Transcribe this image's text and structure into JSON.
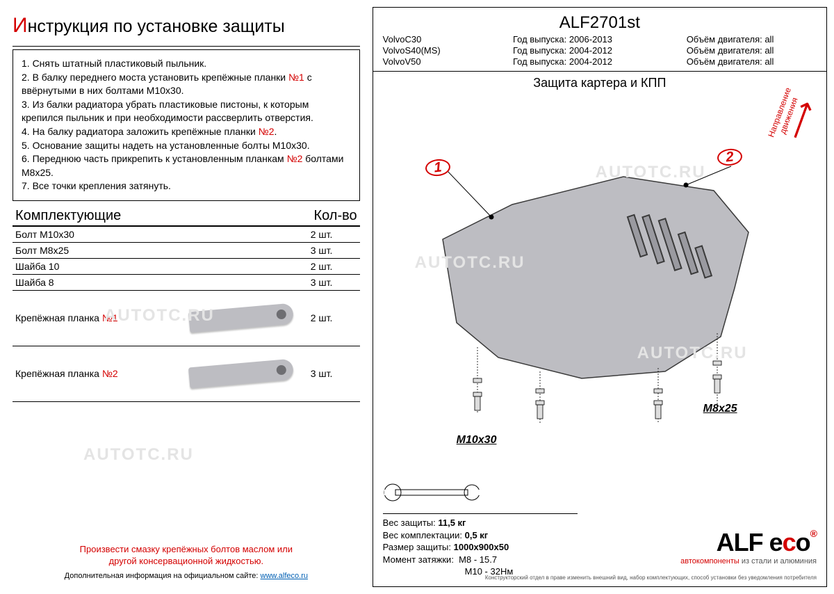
{
  "colors": {
    "accent_red": "#d40000",
    "plate_fill": "#bdbdc2",
    "plate_stroke": "#3a3a3a",
    "watermark": "#e4e4e4",
    "text": "#000000",
    "background": "#ffffff",
    "link": "#005fb3"
  },
  "left": {
    "title_cap": "И",
    "title_rest": "нструкция по установке защиты",
    "instructions": [
      {
        "n": "1.",
        "text": "Снять штатный пластиковый пыльник."
      },
      {
        "n": "2.",
        "text_pre": "В балку переднего моста установить крепёжные планки ",
        "ref": "№1",
        "text_post": " с ввёрнутыми в них болтами М10х30."
      },
      {
        "n": "3.",
        "text": "Из балки радиатора убрать пластиковые пистоны, к которым крепился пыльник и при необходимости рассверлить отверстия."
      },
      {
        "n": "4.",
        "text_pre": "На балку радиатора заложить крепёжные планки ",
        "ref": "№2",
        "text_post": "."
      },
      {
        "n": "5.",
        "text": "Основание защиты надеть на установленные болты М10х30."
      },
      {
        "n": "6.",
        "text_pre": "Переднюю часть прикрепить к установленным планкам ",
        "ref": "№2",
        "text_post": " болтами М8х25."
      },
      {
        "n": "7.",
        "text": "Все точки крепления затянуть."
      }
    ],
    "parts_header_left": "Комплектующие",
    "parts_header_right": "Кол-во",
    "parts": [
      {
        "name": "Болт М10х30",
        "qty": "2 шт."
      },
      {
        "name": "Болт М8х25",
        "qty": "3 шт."
      },
      {
        "name": "Шайба 10",
        "qty": "2 шт."
      },
      {
        "name": "Шайба 8",
        "qty": "3 шт."
      }
    ],
    "planka1": {
      "name_pre": "Крепёжная планка ",
      "ref": "№1",
      "qty": "2 шт."
    },
    "planka2": {
      "name_pre": "Крепёжная планка ",
      "ref": "№2",
      "qty": "3 шт."
    },
    "footer_note_l1": "Произвести смазку крепёжных болтов маслом или",
    "footer_note_l2": "другой консервационной жидкостью.",
    "footer_link_pre": "Дополнительная информация на официальном сайте: ",
    "footer_link": "www.alfeco.ru"
  },
  "right": {
    "model_code": "ALF2701st",
    "cars": [
      {
        "model": "VolvoC30",
        "year_label": "Год выпуска:",
        "years": "2006-2013",
        "engine_label": "Объём двигателя:",
        "engine": "all"
      },
      {
        "model": "VolvoS40(MS)",
        "year_label": "Год выпуска:",
        "years": "2004-2012",
        "engine_label": "Объём двигателя:",
        "engine": "all"
      },
      {
        "model": "VolvoV50",
        "year_label": "Год выпуска:",
        "years": "2004-2012",
        "engine_label": "Объём двигателя:",
        "engine": "all"
      }
    ],
    "subtitle": "Защита картера и КПП",
    "direction_l1": "Направление",
    "direction_l2": "движения",
    "badge1": "1",
    "badge2": "2",
    "label_m10": "М10х30",
    "label_m8": "М8х25",
    "specs": {
      "weight_label": "Вес защиты:",
      "weight": "11,5 кг",
      "kit_label": "Вес комплектации:",
      "kit": "0,5 кг",
      "size_label": "Размер защиты:",
      "size": "1000х900х50",
      "torque_label": "Момент затяжки:",
      "torque1": "М8 - 15.7",
      "torque2": "М10 - 32Нм"
    },
    "logo_text": "ALF e",
    "logo_c": "с",
    "logo_o": "о",
    "logo_sub_1": "автокомпоненты",
    "logo_sub_2": " из стали и алюминия",
    "fineprint": "Конструкторский отдел в праве изменить внешний вид, набор комплектующих, способ установки без уведомления потребителя"
  },
  "watermark_text": "AUTOTC.RU"
}
